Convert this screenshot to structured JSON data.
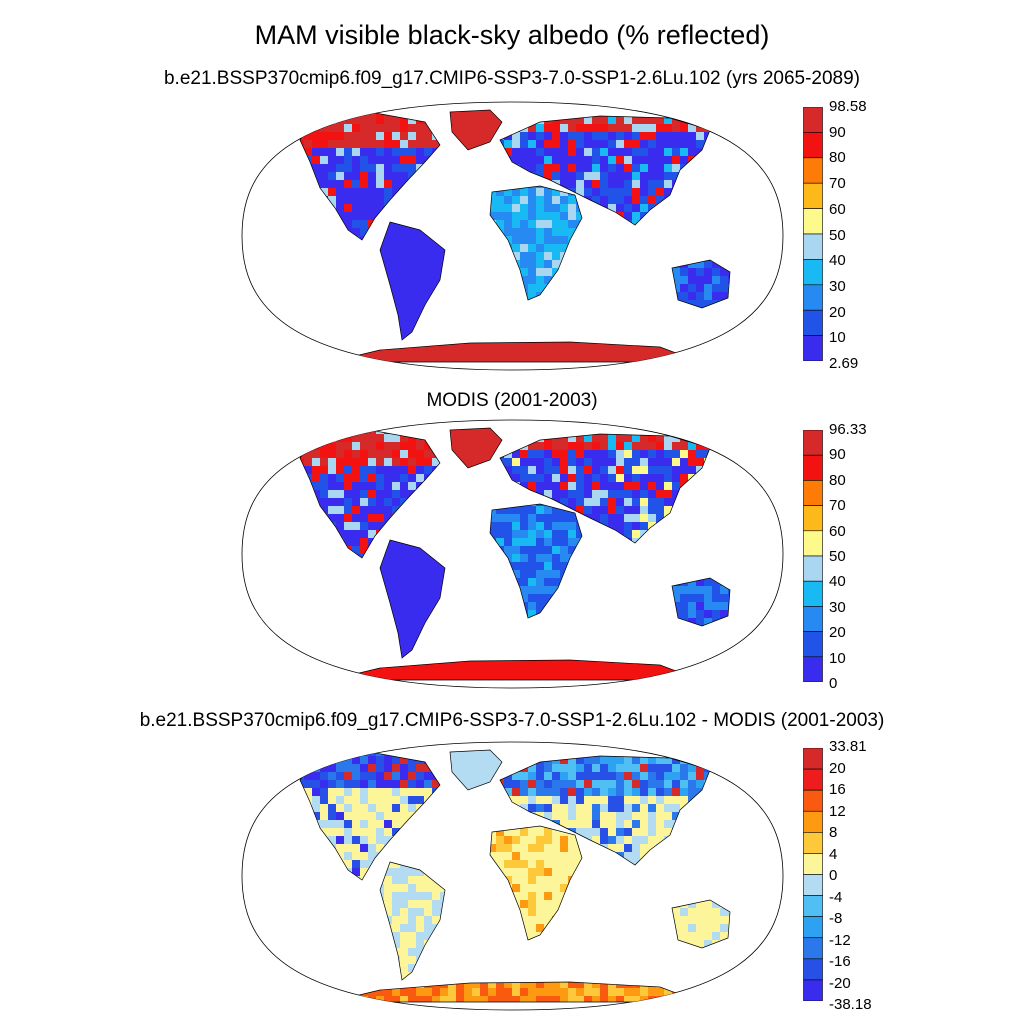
{
  "title": "MAM visible black-sky albedo (% reflected)",
  "panels": [
    {
      "name": "model",
      "subtitle": "b.e21.BSSP370cmip6.f09_g17.CMIP6-SSP3-7.0-SSP1-2.6Lu.102 (yrs 2065-2089)",
      "colorbar_labels": [
        "98.58",
        "90",
        "80",
        "70",
        "60",
        "50",
        "40",
        "30",
        "20",
        "10",
        "2.69"
      ],
      "colors": [
        "#d62a2a",
        "#f21212",
        "#fd7b06",
        "#fdb91a",
        "#fdf98a",
        "#a9d6f0",
        "#19b9f3",
        "#2789f2",
        "#2253e8",
        "#3a2cef"
      ]
    },
    {
      "name": "modis",
      "subtitle": "MODIS (2001-2003)",
      "colorbar_labels": [
        "96.33",
        "90",
        "80",
        "70",
        "60",
        "50",
        "40",
        "30",
        "20",
        "10",
        "0"
      ],
      "colors": [
        "#d62a2a",
        "#f21212",
        "#fd7b06",
        "#fdb91a",
        "#fdf98a",
        "#a9d6f0",
        "#19b9f3",
        "#2789f2",
        "#2253e8",
        "#3a2cef"
      ]
    },
    {
      "name": "difference",
      "subtitle": "b.e21.BSSP370cmip6.f09_g17.CMIP6-SSP3-7.0-SSP1-2.6Lu.102 - MODIS (2001-2003)",
      "colorbar_labels": [
        "33.81",
        "20",
        "16",
        "12",
        "8",
        "4",
        "0",
        "-4",
        "-8",
        "-12",
        "-16",
        "-20",
        "-38.18"
      ],
      "colors": [
        "#d62a2a",
        "#ee1c1c",
        "#f95a10",
        "#fd9a12",
        "#fdc83a",
        "#fdf59a",
        "#b3dcf2",
        "#4fbff4",
        "#2ea2f2",
        "#2b78ec",
        "#2650e6",
        "#3a2cef"
      ]
    }
  ]
}
